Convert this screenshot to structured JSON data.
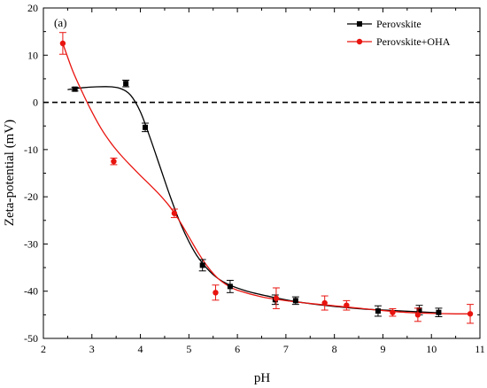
{
  "chart_data": {
    "type": "scatter",
    "panel_label": "(a)",
    "xlabel": "pH",
    "ylabel": "Zeta-potential (mV)",
    "xlim": [
      2,
      11
    ],
    "ylim": [
      -50,
      20
    ],
    "xticks": [
      2,
      3,
      4,
      5,
      6,
      7,
      8,
      9,
      10,
      11
    ],
    "yticks": [
      -50,
      -40,
      -30,
      -20,
      -10,
      0,
      10,
      20
    ],
    "reference_line": {
      "y": 0,
      "style": "dashed",
      "color": "#000000"
    },
    "legend": {
      "position": "top-right"
    },
    "series": [
      {
        "name": "Perovskite",
        "color": "#000000",
        "marker": "square",
        "points": [
          {
            "x": 2.65,
            "y": 2.8,
            "err": 0.4
          },
          {
            "x": 3.7,
            "y": 4.0,
            "err": 0.7
          },
          {
            "x": 4.1,
            "y": -5.3,
            "err": 0.9
          },
          {
            "x": 5.28,
            "y": -34.5,
            "err": 1.2
          },
          {
            "x": 5.85,
            "y": -39.0,
            "err": 1.3
          },
          {
            "x": 6.78,
            "y": -41.8,
            "err": 1.0
          },
          {
            "x": 7.2,
            "y": -42.0,
            "err": 0.8
          },
          {
            "x": 8.9,
            "y": -44.2,
            "err": 1.1
          },
          {
            "x": 9.75,
            "y": -44.0,
            "err": 1.0
          },
          {
            "x": 10.15,
            "y": -44.5,
            "err": 0.9
          }
        ],
        "fit_curve": [
          [
            2.5,
            2.7
          ],
          [
            2.8,
            3.1
          ],
          [
            3.1,
            3.3
          ],
          [
            3.4,
            3.3
          ],
          [
            3.6,
            2.9
          ],
          [
            3.8,
            1.5
          ],
          [
            4.0,
            -2.0
          ],
          [
            4.2,
            -7.5
          ],
          [
            4.4,
            -13.5
          ],
          [
            4.6,
            -19.5
          ],
          [
            4.8,
            -25.0
          ],
          [
            5.0,
            -29.5
          ],
          [
            5.2,
            -33.0
          ],
          [
            5.5,
            -36.5
          ],
          [
            5.8,
            -38.5
          ],
          [
            6.2,
            -40.0
          ],
          [
            6.7,
            -41.2
          ],
          [
            7.2,
            -42.2
          ],
          [
            7.8,
            -43.0
          ],
          [
            8.5,
            -43.7
          ],
          [
            9.2,
            -44.1
          ],
          [
            9.8,
            -44.4
          ],
          [
            10.2,
            -44.6
          ]
        ]
      },
      {
        "name": "Perovskite+OHA",
        "color": "#e8140f",
        "marker": "circle",
        "points": [
          {
            "x": 2.4,
            "y": 12.5,
            "err": 2.3
          },
          {
            "x": 3.45,
            "y": -12.5,
            "err": 0.7
          },
          {
            "x": 4.7,
            "y": -23.5,
            "err": 0.9
          },
          {
            "x": 5.55,
            "y": -40.3,
            "err": 1.6
          },
          {
            "x": 6.8,
            "y": -41.5,
            "err": 2.2
          },
          {
            "x": 7.8,
            "y": -42.5,
            "err": 1.5
          },
          {
            "x": 8.25,
            "y": -43.0,
            "err": 1.0
          },
          {
            "x": 9.2,
            "y": -44.5,
            "err": 0.8
          },
          {
            "x": 9.72,
            "y": -45.0,
            "err": 1.4
          },
          {
            "x": 10.8,
            "y": -44.8,
            "err": 2.0
          }
        ],
        "fit_curve": [
          [
            2.4,
            12.5
          ],
          [
            2.6,
            6.8
          ],
          [
            2.8,
            2.2
          ],
          [
            3.0,
            -2.0
          ],
          [
            3.2,
            -5.7
          ],
          [
            3.4,
            -8.7
          ],
          [
            3.6,
            -11.2
          ],
          [
            3.8,
            -13.4
          ],
          [
            4.0,
            -15.5
          ],
          [
            4.2,
            -17.5
          ],
          [
            4.4,
            -19.6
          ],
          [
            4.6,
            -22.0
          ],
          [
            4.8,
            -25.0
          ],
          [
            5.0,
            -28.5
          ],
          [
            5.2,
            -32.0
          ],
          [
            5.4,
            -35.0
          ],
          [
            5.6,
            -37.3
          ],
          [
            5.8,
            -38.8
          ],
          [
            6.0,
            -39.8
          ],
          [
            6.5,
            -41.2
          ],
          [
            7.0,
            -42.0
          ],
          [
            7.5,
            -42.6
          ],
          [
            8.0,
            -43.1
          ],
          [
            8.5,
            -43.6
          ],
          [
            9.0,
            -44.1
          ],
          [
            9.5,
            -44.5
          ],
          [
            10.0,
            -44.7
          ],
          [
            10.5,
            -44.8
          ],
          [
            10.8,
            -44.8
          ]
        ]
      }
    ]
  }
}
